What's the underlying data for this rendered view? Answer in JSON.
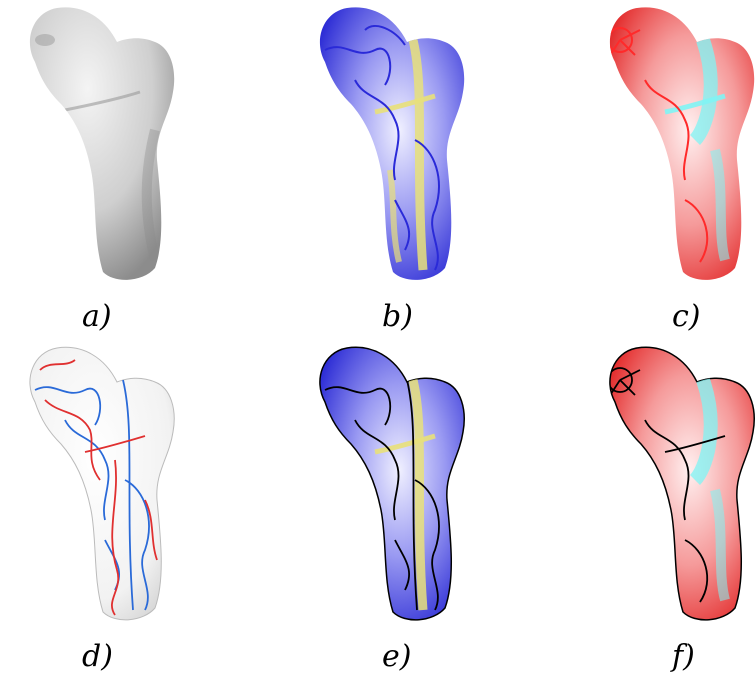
{
  "figure": {
    "panels": [
      {
        "label": "a)",
        "shading": "gray",
        "lines": "none"
      },
      {
        "label": "b)",
        "shading": "blue-yellow",
        "lines": "blue"
      },
      {
        "label": "c)",
        "shading": "red-cyan",
        "lines": "red"
      },
      {
        "label": "d)",
        "shading": "white",
        "lines": "red-blue"
      },
      {
        "label": "e)",
        "shading": "blue-yellow",
        "lines": "black"
      },
      {
        "label": "f)",
        "shading": "red-cyan",
        "lines": "black"
      }
    ],
    "colors": {
      "gray": "#c8c8c8",
      "blue": "#3a3ae0",
      "yellow": "#e8e07a",
      "red": "#ff2a2a",
      "cyan": "#7ff4f4",
      "lineBlue": "#2a6ad8",
      "lineRed": "#e03030",
      "black": "#000000"
    }
  }
}
